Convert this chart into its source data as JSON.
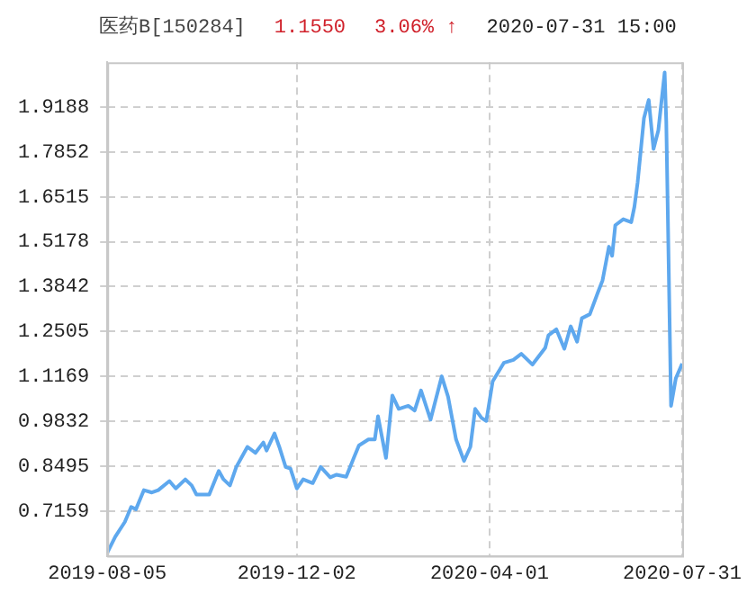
{
  "chart_data": {
    "type": "line",
    "title": "医药B[150284]",
    "annotations": [
      "1.1550",
      "3.06% ↑",
      "2020-07-31 15:00"
    ],
    "x": [
      "2019-08-05",
      "2019-08-10",
      "2019-08-16",
      "2019-08-20",
      "2019-08-23",
      "2019-08-28",
      "2019-09-02",
      "2019-09-06",
      "2019-09-13",
      "2019-09-17",
      "2019-09-23",
      "2019-09-27",
      "2019-09-30",
      "2019-10-08",
      "2019-10-14",
      "2019-10-17",
      "2019-10-21",
      "2019-10-25",
      "2019-11-01",
      "2019-11-06",
      "2019-11-11",
      "2019-11-13",
      "2019-11-18",
      "2019-11-21",
      "2019-11-25",
      "2019-11-28",
      "2019-12-02",
      "2019-12-06",
      "2019-12-12",
      "2019-12-17",
      "2019-12-23",
      "2019-12-27",
      "2020-01-02",
      "2020-01-06",
      "2020-01-10",
      "2020-01-16",
      "2020-01-20",
      "2020-01-22",
      "2020-01-27",
      "2020-01-31",
      "2020-02-04",
      "2020-02-10",
      "2020-02-14",
      "2020-02-18",
      "2020-02-24",
      "2020-03-02",
      "2020-03-06",
      "2020-03-11",
      "2020-03-16",
      "2020-03-20",
      "2020-03-23",
      "2020-03-27",
      "2020-03-30",
      "2020-04-03",
      "2020-04-10",
      "2020-04-16",
      "2020-04-21",
      "2020-04-28",
      "2020-05-06",
      "2020-05-08",
      "2020-05-13",
      "2020-05-18",
      "2020-05-22",
      "2020-05-26",
      "2020-05-29",
      "2020-06-03",
      "2020-06-08",
      "2020-06-11",
      "2020-06-15",
      "2020-06-17",
      "2020-06-19",
      "2020-06-24",
      "2020-06-29",
      "2020-07-01",
      "2020-07-03",
      "2020-07-07",
      "2020-07-10",
      "2020-07-13",
      "2020-07-16",
      "2020-07-20",
      "2020-07-21",
      "2020-07-24",
      "2020-07-27",
      "2020-07-31"
    ],
    "series": [
      {
        "color": "#5ea8ee",
        "values": [
          0.592,
          0.639,
          0.683,
          0.728,
          0.721,
          0.778,
          0.771,
          0.778,
          0.805,
          0.783,
          0.81,
          0.792,
          0.765,
          0.765,
          0.835,
          0.81,
          0.792,
          0.847,
          0.907,
          0.889,
          0.92,
          0.896,
          0.947,
          0.907,
          0.847,
          0.842,
          0.783,
          0.81,
          0.799,
          0.847,
          0.816,
          0.824,
          0.818,
          0.865,
          0.911,
          0.929,
          0.929,
          0.998,
          0.874,
          1.06,
          1.02,
          1.029,
          1.015,
          1.075,
          0.988,
          1.117,
          1.056,
          0.929,
          0.865,
          0.907,
          1.02,
          0.993,
          0.984,
          1.102,
          1.157,
          1.166,
          1.184,
          1.152,
          1.202,
          1.239,
          1.257,
          1.199,
          1.266,
          1.22,
          1.29,
          1.302,
          1.366,
          1.403,
          1.503,
          1.476,
          1.567,
          1.585,
          1.576,
          1.622,
          1.694,
          1.886,
          1.94,
          1.794,
          1.849,
          2.022,
          1.876,
          1.029,
          1.111,
          1.155
        ]
      }
    ],
    "ylim": [
      0.5823,
      2.0524
    ],
    "yticks": [
      0.7159,
      0.8495,
      0.9832,
      1.1169,
      1.2505,
      1.3842,
      1.5178,
      1.6515,
      1.7852,
      1.9188
    ],
    "xlim": [
      "2019-08-05",
      "2020-07-31"
    ],
    "xticks": [
      "2019-08-05",
      "2019-12-02",
      "2020-04-01",
      "2020-07-31"
    ],
    "grid": true,
    "marker": "none",
    "line_style": "solid"
  }
}
